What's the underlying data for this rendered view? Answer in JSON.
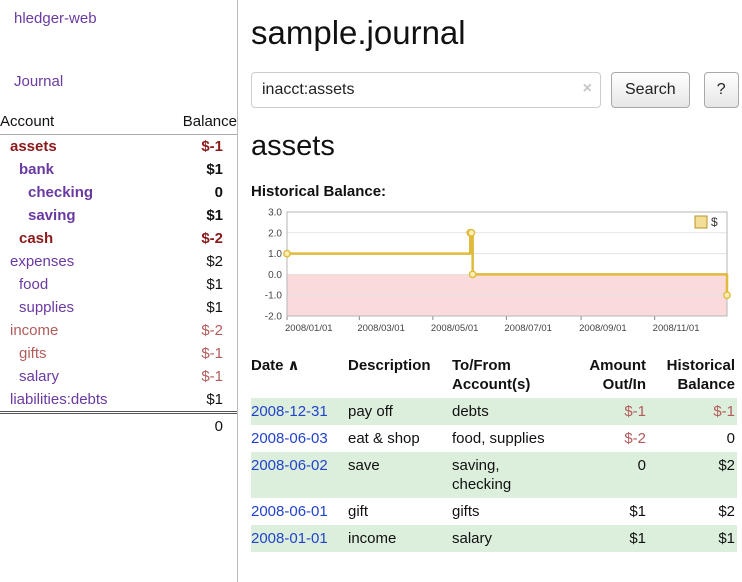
{
  "colors": {
    "purple": "#6a3aa2",
    "link-blue": "#2244cc",
    "stripe-green": "#dceedc",
    "red-bold": "#8b1a1a",
    "red-light": "#b25b5b",
    "chart-gold": "#e0ba3c",
    "chart-pink": "#fadada"
  },
  "sidebar": {
    "app_title": "hledger-web",
    "journal_link": "Journal",
    "account_header": "Account",
    "balance_header": "Balance",
    "accounts": [
      {
        "name": "assets",
        "indent": 0,
        "balance": "$-1",
        "bold": true,
        "name_color": "#8b1a1a",
        "balance_color": "#8b1a1a"
      },
      {
        "name": "bank",
        "indent": 1,
        "balance": "$1",
        "bold": true,
        "name_color": "#6a3aa2",
        "balance_color": "#111111"
      },
      {
        "name": "checking",
        "indent": 2,
        "balance": "0",
        "bold": true,
        "name_color": "#6a3aa2",
        "balance_color": "#111111"
      },
      {
        "name": "saving",
        "indent": 2,
        "balance": "$1",
        "bold": true,
        "name_color": "#6a3aa2",
        "balance_color": "#111111"
      },
      {
        "name": "cash",
        "indent": 1,
        "balance": "$-2",
        "bold": true,
        "name_color": "#8b1a1a",
        "balance_color": "#8b1a1a"
      },
      {
        "name": "expenses",
        "indent": 0,
        "balance": "$2",
        "bold": false,
        "name_color": "#6a3aa2",
        "balance_color": "#111111"
      },
      {
        "name": "food",
        "indent": 1,
        "balance": "$1",
        "bold": false,
        "name_color": "#6a3aa2",
        "balance_color": "#111111"
      },
      {
        "name": "supplies",
        "indent": 1,
        "balance": "$1",
        "bold": false,
        "name_color": "#6a3aa2",
        "balance_color": "#111111"
      },
      {
        "name": "income",
        "indent": 0,
        "balance": "$-2",
        "bold": false,
        "name_color": "#b25b5b",
        "balance_color": "#b25b5b"
      },
      {
        "name": "gifts",
        "indent": 1,
        "balance": "$-1",
        "bold": false,
        "name_color": "#b25b5b",
        "balance_color": "#b25b5b"
      },
      {
        "name": "salary",
        "indent": 1,
        "balance": "$-1",
        "bold": false,
        "name_color": "#6a3aa2",
        "balance_color": "#b25b5b"
      },
      {
        "name": "liabilities:debts",
        "indent": 0,
        "balance": "$1",
        "bold": false,
        "name_color": "#6a3aa2",
        "balance_color": "#111111"
      }
    ],
    "total": "0"
  },
  "main": {
    "title": "sample.journal",
    "search": {
      "value": "inacct:assets",
      "clear_icon": "×",
      "button_label": "Search",
      "help_label": "?"
    },
    "heading": "assets",
    "chart_title": "Historical Balance:"
  },
  "chart_data": {
    "type": "line",
    "title": "Historical Balance",
    "step": true,
    "ylim": [
      -2,
      3
    ],
    "y_ticks": [
      3,
      2,
      1,
      0,
      -1,
      -2
    ],
    "x_start": "2008-01-01",
    "x_end": "2008-12-31",
    "x_ticks": [
      "2008/01/01",
      "2008/03/01",
      "2008/05/01",
      "2008/07/01",
      "2008/09/01",
      "2008/11/01"
    ],
    "legend": [
      {
        "label": "$",
        "color": "#e8c33f"
      }
    ],
    "negative_region_color": "#fadada",
    "series": [
      {
        "name": "$",
        "color": "#e0ba3c",
        "points": [
          {
            "date": "2008-01-01",
            "value": 1
          },
          {
            "date": "2008-06-01",
            "value": 2
          },
          {
            "date": "2008-06-02",
            "value": 2
          },
          {
            "date": "2008-06-03",
            "value": 0
          },
          {
            "date": "2008-12-31",
            "value": -1
          }
        ]
      }
    ]
  },
  "register": {
    "headers": {
      "date": "Date",
      "sort_icon": "∧",
      "description": "Description",
      "accounts": "To/From Account(s)",
      "amount": "Amount Out/In",
      "balance": "Historical Balance"
    },
    "rows": [
      {
        "date": "2008-12-31",
        "description": "pay off",
        "accounts": "debts",
        "amount": "$-1",
        "amount_color": "#b25b5b",
        "balance": "$-1",
        "balance_color": "#b25b5b"
      },
      {
        "date": "2008-06-03",
        "description": "eat & shop",
        "accounts": "food, supplies",
        "amount": "$-2",
        "amount_color": "#b25b5b",
        "balance": "0",
        "balance_color": "#111111"
      },
      {
        "date": "2008-06-02",
        "description": "save",
        "accounts": "saving, checking",
        "amount": "0",
        "amount_color": "#111111",
        "balance": "$2",
        "balance_color": "#111111"
      },
      {
        "date": "2008-06-01",
        "description": "gift",
        "accounts": "gifts",
        "amount": "$1",
        "amount_color": "#111111",
        "balance": "$2",
        "balance_color": "#111111"
      },
      {
        "date": "2008-01-01",
        "description": "income",
        "accounts": "salary",
        "amount": "$1",
        "amount_color": "#111111",
        "balance": "$1",
        "balance_color": "#111111"
      }
    ]
  }
}
